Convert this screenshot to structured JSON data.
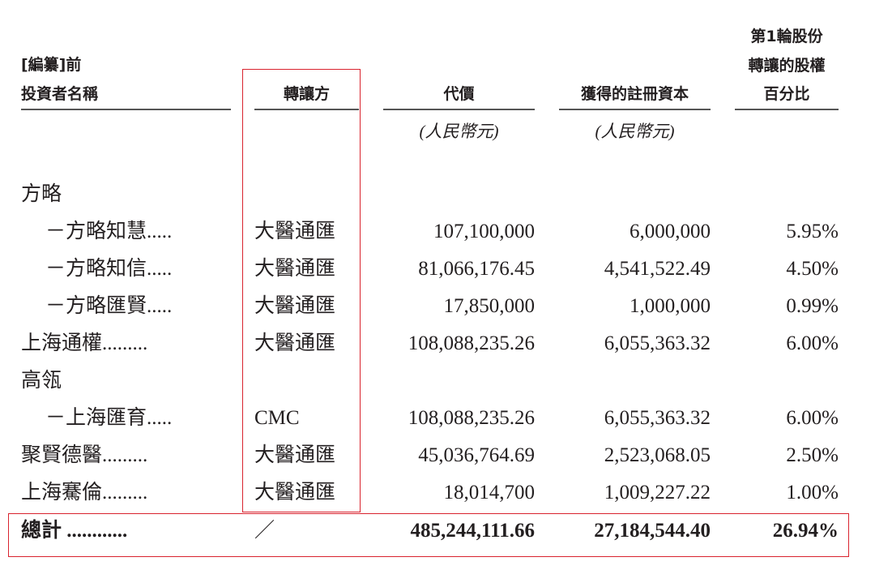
{
  "header": {
    "col_name": [
      "[編纂]前",
      "投資者名稱"
    ],
    "col_transferor": "轉讓方",
    "col_price": "代價",
    "col_capital": "獲得的註冊資本",
    "col_pct": [
      "第1輪股份",
      "轉讓的股權",
      "百分比"
    ],
    "unit_price": "(人民幣元)",
    "unit_capital": "(人民幣元)"
  },
  "rows": [
    {
      "name": "方略",
      "indent": false,
      "transferor": "",
      "price": "",
      "capital": "",
      "pct": ""
    },
    {
      "name": "－方略知慧.....",
      "indent": true,
      "transferor": "大醫通匯",
      "price": "107,100,000",
      "capital": "6,000,000",
      "pct": "5.95%"
    },
    {
      "name": "－方略知信.....",
      "indent": true,
      "transferor": "大醫通匯",
      "price": "81,066,176.45",
      "capital": "4,541,522.49",
      "pct": "4.50%"
    },
    {
      "name": "－方略匯賢.....",
      "indent": true,
      "transferor": "大醫通匯",
      "price": "17,850,000",
      "capital": "1,000,000",
      "pct": "0.99%"
    },
    {
      "name": "上海通權.........",
      "indent": false,
      "transferor": "大醫通匯",
      "price": "108,088,235.26",
      "capital": "6,055,363.32",
      "pct": "6.00%"
    },
    {
      "name": "高瓴",
      "indent": false,
      "transferor": "",
      "price": "",
      "capital": "",
      "pct": ""
    },
    {
      "name": "－上海匯育.....",
      "indent": true,
      "transferor": "CMC",
      "price": "108,088,235.26",
      "capital": "6,055,363.32",
      "pct": "6.00%"
    },
    {
      "name": "聚賢德醫.........",
      "indent": false,
      "transferor": "大醫通匯",
      "price": "45,036,764.69",
      "capital": "2,523,068.05",
      "pct": "2.50%"
    },
    {
      "name": "上海騫倫.........",
      "indent": false,
      "transferor": "大醫通匯",
      "price": "18,014,700",
      "capital": "1,009,227.22",
      "pct": "1.00%"
    }
  ],
  "total": {
    "name": "總計 ............",
    "transferor": "／",
    "price": "485,244,111.66",
    "capital": "27,184,544.40",
    "pct": "26.94%"
  },
  "highlight_color": "#d9232e"
}
